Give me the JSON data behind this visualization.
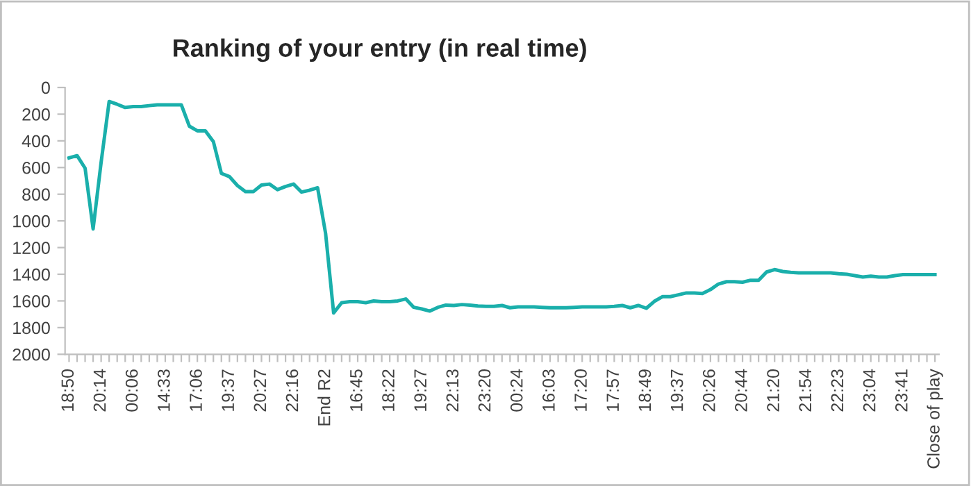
{
  "chart_data": {
    "type": "line",
    "title": "Ranking of your entry (in real time)",
    "categories": [
      "18:50",
      null,
      null,
      null,
      "20:14",
      null,
      null,
      null,
      "00:06",
      null,
      null,
      null,
      "14:33",
      null,
      null,
      null,
      "17:06",
      null,
      null,
      null,
      "19:37",
      null,
      null,
      null,
      "20:27",
      null,
      null,
      null,
      "22:16",
      null,
      null,
      null,
      "End R2",
      null,
      null,
      null,
      "16:45",
      null,
      null,
      null,
      "18:22",
      null,
      null,
      null,
      "19:27",
      null,
      null,
      null,
      "22:13",
      null,
      null,
      null,
      "23:20",
      null,
      null,
      null,
      "00:24",
      null,
      null,
      null,
      "16:03",
      null,
      null,
      null,
      "17:20",
      null,
      null,
      null,
      "17:57",
      null,
      null,
      null,
      "18:49",
      null,
      null,
      null,
      "19:37",
      null,
      null,
      null,
      "20:26",
      null,
      null,
      null,
      "20:44",
      null,
      null,
      null,
      "21:20",
      null,
      null,
      null,
      "21:54",
      null,
      null,
      null,
      "22:23",
      null,
      null,
      null,
      "23:04",
      null,
      null,
      null,
      "23:41",
      null,
      null,
      null,
      "Close of play"
    ],
    "series": [
      {
        "color": "#1aafab",
        "values": [
          528,
          511,
          605,
          1060,
          560,
          105,
          126,
          150,
          143,
          143,
          136,
          130,
          130,
          130,
          130,
          290,
          325,
          325,
          406,
          644,
          668,
          735,
          780,
          780,
          731,
          724,
          766,
          742,
          724,
          784,
          770,
          752,
          1095,
          1690,
          1613,
          1606,
          1606,
          1613,
          1600,
          1606,
          1606,
          1600,
          1585,
          1648,
          1660,
          1676,
          1648,
          1631,
          1634,
          1627,
          1631,
          1638,
          1641,
          1641,
          1634,
          1651,
          1645,
          1645,
          1645,
          1648,
          1651,
          1651,
          1651,
          1648,
          1645,
          1645,
          1645,
          1645,
          1641,
          1634,
          1651,
          1634,
          1655,
          1603,
          1568,
          1568,
          1554,
          1540,
          1540,
          1544,
          1515,
          1473,
          1456,
          1456,
          1460,
          1445,
          1445,
          1383,
          1365,
          1379,
          1386,
          1389,
          1389,
          1389,
          1389,
          1389,
          1396,
          1400,
          1410,
          1421,
          1414,
          1421,
          1421,
          1410,
          1403,
          1403,
          1403,
          1403,
          1403
        ]
      }
    ],
    "ylim": [
      2000,
      0
    ],
    "yticks": [
      0,
      200,
      400,
      600,
      800,
      1000,
      1200,
      1400,
      1600,
      1800,
      2000
    ],
    "grid": false,
    "legend": false,
    "marker": "none",
    "line_style": "solid"
  }
}
